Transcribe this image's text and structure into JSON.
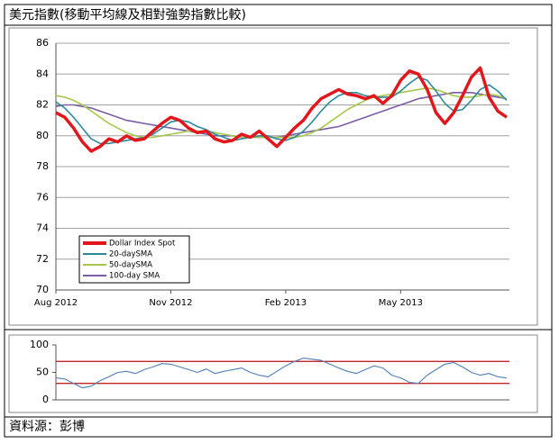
{
  "title": "美元指數(移動平均線及相對強勢指數比較)",
  "source": "資料源：彭博",
  "chart_data": [
    {
      "type": "line",
      "categories": [
        "Aug 2012",
        null,
        null,
        null,
        null,
        null,
        null,
        null,
        null,
        null,
        null,
        null,
        null,
        "Nov 2012",
        null,
        null,
        null,
        null,
        null,
        null,
        null,
        null,
        null,
        null,
        null,
        null,
        "Feb 2013",
        null,
        null,
        null,
        null,
        null,
        null,
        null,
        null,
        null,
        null,
        null,
        null,
        "May 2013",
        null,
        null,
        null,
        null,
        null,
        null,
        null,
        null,
        null,
        null,
        null,
        null
      ],
      "series": [
        {
          "name": "Dollar Index Spot",
          "color": "#e3161c",
          "values": [
            81.5,
            81.2,
            80.5,
            79.6,
            79.0,
            79.3,
            79.8,
            79.6,
            80.0,
            79.7,
            79.8,
            80.3,
            80.8,
            81.2,
            81.0,
            80.5,
            80.2,
            80.3,
            79.8,
            79.6,
            79.7,
            80.1,
            79.9,
            80.3,
            79.8,
            79.3,
            79.9,
            80.5,
            81.0,
            81.8,
            82.4,
            82.7,
            83.0,
            82.7,
            82.6,
            82.4,
            82.6,
            82.1,
            82.6,
            83.6,
            84.2,
            84.0,
            83.0,
            81.5,
            80.8,
            81.5,
            82.6,
            83.8,
            84.4,
            82.5,
            81.6,
            81.2
          ]
        },
        {
          "name": "20-daySMA",
          "color": "#2d8a9a",
          "values": [
            82.2,
            81.8,
            81.2,
            80.5,
            79.8,
            79.5,
            79.5,
            79.6,
            79.7,
            79.8,
            79.9,
            80.1,
            80.5,
            80.9,
            81.0,
            80.9,
            80.6,
            80.4,
            80.1,
            79.9,
            79.7,
            79.8,
            79.9,
            80.0,
            80.0,
            79.8,
            79.7,
            79.9,
            80.3,
            80.9,
            81.6,
            82.2,
            82.6,
            82.8,
            82.8,
            82.6,
            82.5,
            82.5,
            82.5,
            82.9,
            83.4,
            83.8,
            83.6,
            82.9,
            82.1,
            81.6,
            81.7,
            82.3,
            83.0,
            83.3,
            82.9,
            82.3
          ]
        },
        {
          "name": "50-daySMA",
          "color": "#a5c84a",
          "values": [
            82.6,
            82.5,
            82.3,
            82.0,
            81.6,
            81.2,
            80.8,
            80.5,
            80.2,
            80.0,
            79.9,
            79.9,
            80.0,
            80.1,
            80.2,
            80.3,
            80.3,
            80.3,
            80.2,
            80.1,
            80.0,
            79.9,
            79.9,
            79.9,
            79.9,
            79.9,
            79.9,
            79.9,
            80.0,
            80.2,
            80.5,
            80.9,
            81.3,
            81.7,
            82.0,
            82.3,
            82.5,
            82.6,
            82.7,
            82.8,
            82.9,
            83.0,
            83.1,
            83.0,
            82.8,
            82.6,
            82.5,
            82.5,
            82.6,
            82.7,
            82.6,
            82.4
          ]
        },
        {
          "name": "100-day SMA",
          "color": "#7a5ca8",
          "values": [
            81.9,
            82.0,
            82.0,
            81.9,
            81.8,
            81.6,
            81.4,
            81.2,
            81.0,
            80.9,
            80.8,
            80.7,
            80.6,
            80.5,
            80.4,
            80.3,
            80.2,
            80.1,
            80.0,
            80.0,
            80.0,
            79.9,
            79.9,
            79.9,
            79.9,
            79.9,
            80.0,
            80.1,
            80.2,
            80.3,
            80.4,
            80.5,
            80.6,
            80.8,
            81.0,
            81.2,
            81.4,
            81.6,
            81.8,
            82.0,
            82.2,
            82.4,
            82.5,
            82.6,
            82.7,
            82.8,
            82.8,
            82.8,
            82.7,
            82.6,
            82.5,
            82.4
          ]
        }
      ],
      "ylim": [
        70,
        86
      ],
      "yticks": [
        70,
        72,
        74,
        76,
        78,
        80,
        82,
        84,
        86
      ],
      "grid": true,
      "legend": "lower left"
    },
    {
      "type": "line",
      "series": [
        {
          "color": "#4f7fb8",
          "values": [
            40,
            38,
            30,
            22,
            25,
            35,
            42,
            50,
            52,
            48,
            55,
            60,
            66,
            65,
            60,
            55,
            50,
            56,
            48,
            52,
            55,
            58,
            50,
            45,
            42,
            52,
            62,
            70,
            76,
            74,
            72,
            65,
            58,
            52,
            48,
            55,
            62,
            58,
            45,
            40,
            32,
            30,
            45,
            55,
            65,
            68,
            60,
            50,
            45,
            48,
            42,
            40
          ]
        }
      ],
      "reference_lines": [
        70,
        30
      ],
      "reference_color": "#c0282d",
      "ylim": [
        0,
        100
      ],
      "yticks": [
        0,
        50,
        100
      ],
      "grid": false
    }
  ]
}
